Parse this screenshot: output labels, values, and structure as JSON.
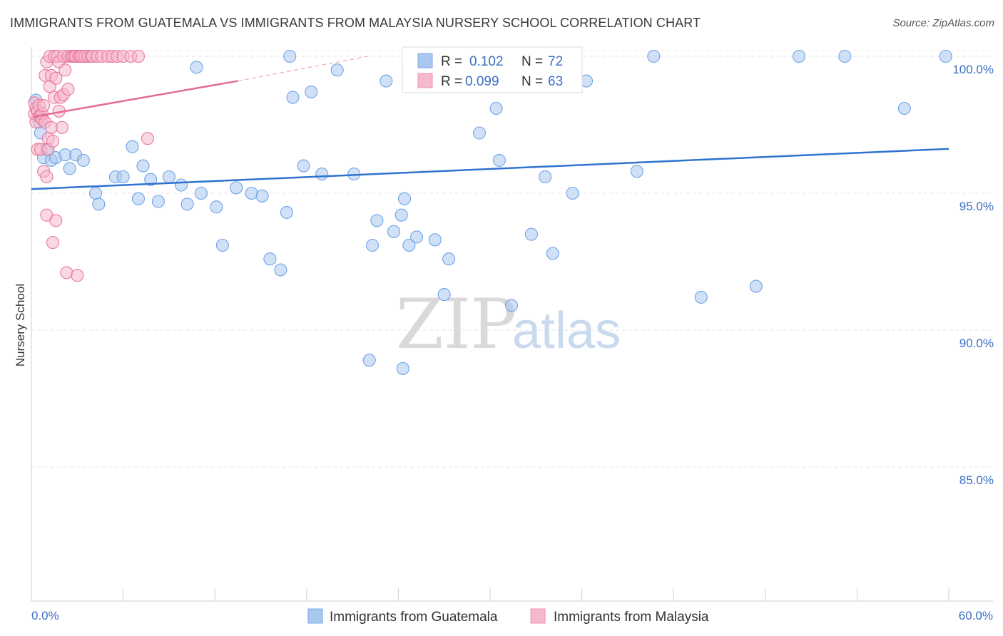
{
  "header": {
    "title": "IMMIGRANTS FROM GUATEMALA VS IMMIGRANTS FROM MALAYSIA NURSERY SCHOOL CORRELATION CHART",
    "source": "Source: ZipAtlas.com"
  },
  "watermark": {
    "zip": "ZIP",
    "atlas": "atlas"
  },
  "legend": {
    "r_label": "R =",
    "n_label": "N =",
    "items": [
      {
        "r": "0.102",
        "n": "72",
        "color": "#a9c8f0"
      },
      {
        "r": "0.099",
        "n": "63",
        "color": "#f6b8cb"
      }
    ]
  },
  "bottom_legend": {
    "items": [
      {
        "label": "Immigrants from Guatemala",
        "color": "#a9c8f0"
      },
      {
        "label": "Immigrants from Malaysia",
        "color": "#f6b8cb"
      }
    ]
  },
  "chart_data": {
    "type": "scatter",
    "title": "IMMIGRANTS FROM GUATEMALA VS IMMIGRANTS FROM MALAYSIA NURSERY SCHOOL CORRELATION CHART",
    "xlabel": "",
    "ylabel": "Nursery School",
    "xlim": [
      0,
      60
    ],
    "ylim": [
      80.5,
      100.8
    ],
    "x_tick_labels": [
      "0.0%",
      "60.0%"
    ],
    "y_ticks": [
      {
        "value": 100,
        "label": "100.0%"
      },
      {
        "value": 95,
        "label": "95.0%"
      },
      {
        "value": 90,
        "label": "90.0%"
      },
      {
        "value": 85,
        "label": "85.0%"
      }
    ],
    "series": [
      {
        "name": "Immigrants from Guatemala",
        "color": "#6fa3e6",
        "fill": "#a9c8f0",
        "trend": {
          "x": [
            0,
            60
          ],
          "y": [
            95.15,
            96.62
          ]
        },
        "points": [
          [
            0.3,
            98.4
          ],
          [
            0.5,
            97.6
          ],
          [
            0.6,
            97.2
          ],
          [
            0.8,
            96.3
          ],
          [
            1.0,
            96.6
          ],
          [
            1.3,
            96.2
          ],
          [
            1.6,
            96.3
          ],
          [
            2.2,
            96.4
          ],
          [
            2.5,
            95.9
          ],
          [
            2.9,
            96.4
          ],
          [
            3.4,
            96.2
          ],
          [
            4.2,
            95.0
          ],
          [
            4.4,
            94.6
          ],
          [
            5.5,
            95.6
          ],
          [
            6.0,
            95.6
          ],
          [
            6.6,
            96.7
          ],
          [
            7.0,
            94.8
          ],
          [
            7.3,
            96.0
          ],
          [
            7.8,
            95.5
          ],
          [
            8.3,
            94.7
          ],
          [
            9.0,
            95.6
          ],
          [
            9.8,
            95.3
          ],
          [
            10.2,
            94.6
          ],
          [
            10.8,
            99.6
          ],
          [
            11.1,
            95.0
          ],
          [
            12.1,
            94.5
          ],
          [
            12.5,
            93.1
          ],
          [
            13.4,
            95.2
          ],
          [
            14.4,
            95.0
          ],
          [
            15.1,
            94.9
          ],
          [
            15.6,
            92.6
          ],
          [
            16.3,
            92.2
          ],
          [
            16.7,
            94.3
          ],
          [
            17.1,
            98.5
          ],
          [
            17.8,
            96.0
          ],
          [
            18.3,
            98.7
          ],
          [
            19.0,
            95.7
          ],
          [
            20.0,
            99.5
          ],
          [
            21.1,
            95.7
          ],
          [
            22.3,
            93.1
          ],
          [
            22.6,
            94.0
          ],
          [
            23.2,
            99.1
          ],
          [
            23.7,
            93.6
          ],
          [
            24.2,
            94.2
          ],
          [
            24.4,
            94.8
          ],
          [
            24.7,
            93.1
          ],
          [
            25.2,
            93.4
          ],
          [
            26.4,
            93.3
          ],
          [
            27.0,
            91.3
          ],
          [
            27.3,
            92.6
          ],
          [
            29.3,
            97.2
          ],
          [
            30.4,
            98.1
          ],
          [
            30.6,
            96.2
          ],
          [
            31.4,
            90.9
          ],
          [
            31.8,
            100.0
          ],
          [
            32.7,
            93.5
          ],
          [
            33.6,
            95.6
          ],
          [
            34.1,
            92.8
          ],
          [
            35.4,
            95.0
          ],
          [
            36.3,
            99.1
          ],
          [
            39.6,
            95.8
          ],
          [
            40.7,
            100.0
          ],
          [
            43.8,
            91.2
          ],
          [
            47.4,
            91.6
          ],
          [
            50.2,
            100.0
          ],
          [
            53.2,
            100.0
          ],
          [
            57.1,
            98.1
          ],
          [
            59.8,
            100.0
          ],
          [
            16.9,
            100.0
          ],
          [
            22.1,
            88.9
          ],
          [
            24.3,
            88.6
          ],
          [
            34.5,
            100.0
          ]
        ]
      },
      {
        "name": "Immigrants from Malaysia",
        "color": "#e8799f",
        "fill": "#f6b8cb",
        "trend": {
          "x": [
            0.2,
            13.5
          ],
          "y": [
            97.8,
            99.1
          ],
          "dash_x": [
            13.5,
            22.0
          ],
          "dash_y": [
            99.1,
            100.0
          ]
        },
        "points": [
          [
            0.2,
            98.3
          ],
          [
            0.2,
            97.9
          ],
          [
            0.3,
            98.1
          ],
          [
            0.3,
            97.6
          ],
          [
            0.4,
            98.0
          ],
          [
            0.4,
            96.6
          ],
          [
            0.5,
            97.8
          ],
          [
            0.5,
            98.2
          ],
          [
            0.6,
            97.8
          ],
          [
            0.6,
            96.6
          ],
          [
            0.7,
            97.7
          ],
          [
            0.7,
            97.9
          ],
          [
            0.8,
            95.8
          ],
          [
            0.8,
            98.2
          ],
          [
            0.9,
            99.3
          ],
          [
            0.9,
            97.6
          ],
          [
            1.0,
            95.6
          ],
          [
            1.0,
            94.2
          ],
          [
            1.0,
            99.8
          ],
          [
            1.1,
            97.0
          ],
          [
            1.1,
            96.6
          ],
          [
            1.2,
            98.9
          ],
          [
            1.2,
            100.0
          ],
          [
            1.3,
            99.3
          ],
          [
            1.3,
            97.4
          ],
          [
            1.4,
            96.9
          ],
          [
            1.4,
            93.2
          ],
          [
            1.5,
            100.0
          ],
          [
            1.5,
            98.5
          ],
          [
            1.6,
            94.0
          ],
          [
            1.6,
            99.2
          ],
          [
            1.7,
            100.0
          ],
          [
            1.8,
            98.0
          ],
          [
            1.8,
            99.8
          ],
          [
            1.9,
            98.5
          ],
          [
            2.0,
            97.4
          ],
          [
            2.1,
            100.0
          ],
          [
            2.1,
            98.6
          ],
          [
            2.2,
            99.5
          ],
          [
            2.3,
            92.1
          ],
          [
            2.4,
            100.0
          ],
          [
            2.4,
            98.8
          ],
          [
            2.6,
            100.0
          ],
          [
            2.7,
            100.0
          ],
          [
            2.8,
            100.0
          ],
          [
            2.9,
            100.0
          ],
          [
            3.0,
            92.0
          ],
          [
            3.1,
            100.0
          ],
          [
            3.2,
            100.0
          ],
          [
            3.3,
            100.0
          ],
          [
            3.5,
            100.0
          ],
          [
            3.7,
            100.0
          ],
          [
            3.9,
            100.0
          ],
          [
            4.0,
            100.0
          ],
          [
            4.3,
            100.0
          ],
          [
            4.6,
            100.0
          ],
          [
            5.0,
            100.0
          ],
          [
            5.3,
            100.0
          ],
          [
            5.6,
            100.0
          ],
          [
            6.0,
            100.0
          ],
          [
            6.5,
            100.0
          ],
          [
            7.0,
            100.0
          ],
          [
            7.6,
            97.0
          ]
        ]
      }
    ]
  }
}
